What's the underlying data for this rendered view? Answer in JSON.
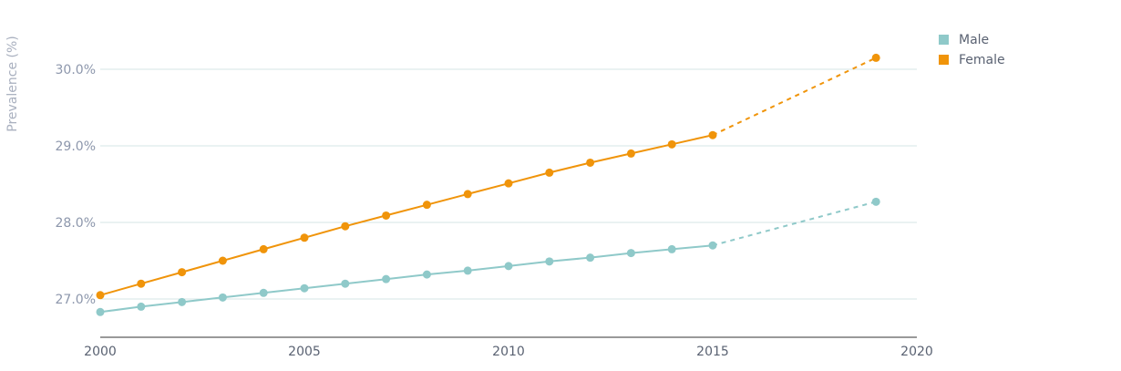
{
  "chart_data": {
    "type": "line",
    "title": "",
    "xlabel": "",
    "ylabel": "Prevalence (%)",
    "xlim": [
      2000,
      2020
    ],
    "ylim": [
      26.5,
      30.7
    ],
    "x_ticks": [
      "2000",
      "2005",
      "2010",
      "2015",
      "2020"
    ],
    "y_ticks": [
      "27.0%",
      "28.0%",
      "29.0%",
      "30.0%"
    ],
    "grid": true,
    "legend_position": "top-right",
    "series": [
      {
        "name": "Male",
        "color": "#8fc9c9",
        "x": [
          2000,
          2001,
          2002,
          2003,
          2004,
          2005,
          2006,
          2007,
          2008,
          2009,
          2010,
          2011,
          2012,
          2013,
          2014,
          2015
        ],
        "values": [
          26.83,
          26.9,
          26.96,
          27.02,
          27.08,
          27.14,
          27.2,
          27.26,
          27.32,
          27.37,
          27.43,
          27.49,
          27.54,
          27.6,
          27.65,
          27.7
        ],
        "projection": {
          "x": [
            2015,
            2019
          ],
          "values": [
            27.7,
            28.27
          ]
        }
      },
      {
        "name": "Female",
        "color": "#f0940a",
        "x": [
          2000,
          2001,
          2002,
          2003,
          2004,
          2005,
          2006,
          2007,
          2008,
          2009,
          2010,
          2011,
          2012,
          2013,
          2014,
          2015
        ],
        "values": [
          27.05,
          27.2,
          27.35,
          27.5,
          27.65,
          27.8,
          27.95,
          28.09,
          28.23,
          28.37,
          28.51,
          28.65,
          28.78,
          28.9,
          29.02,
          29.14
        ],
        "projection": {
          "x": [
            2015,
            2019
          ],
          "values": [
            29.14,
            30.15
          ]
        }
      }
    ]
  }
}
